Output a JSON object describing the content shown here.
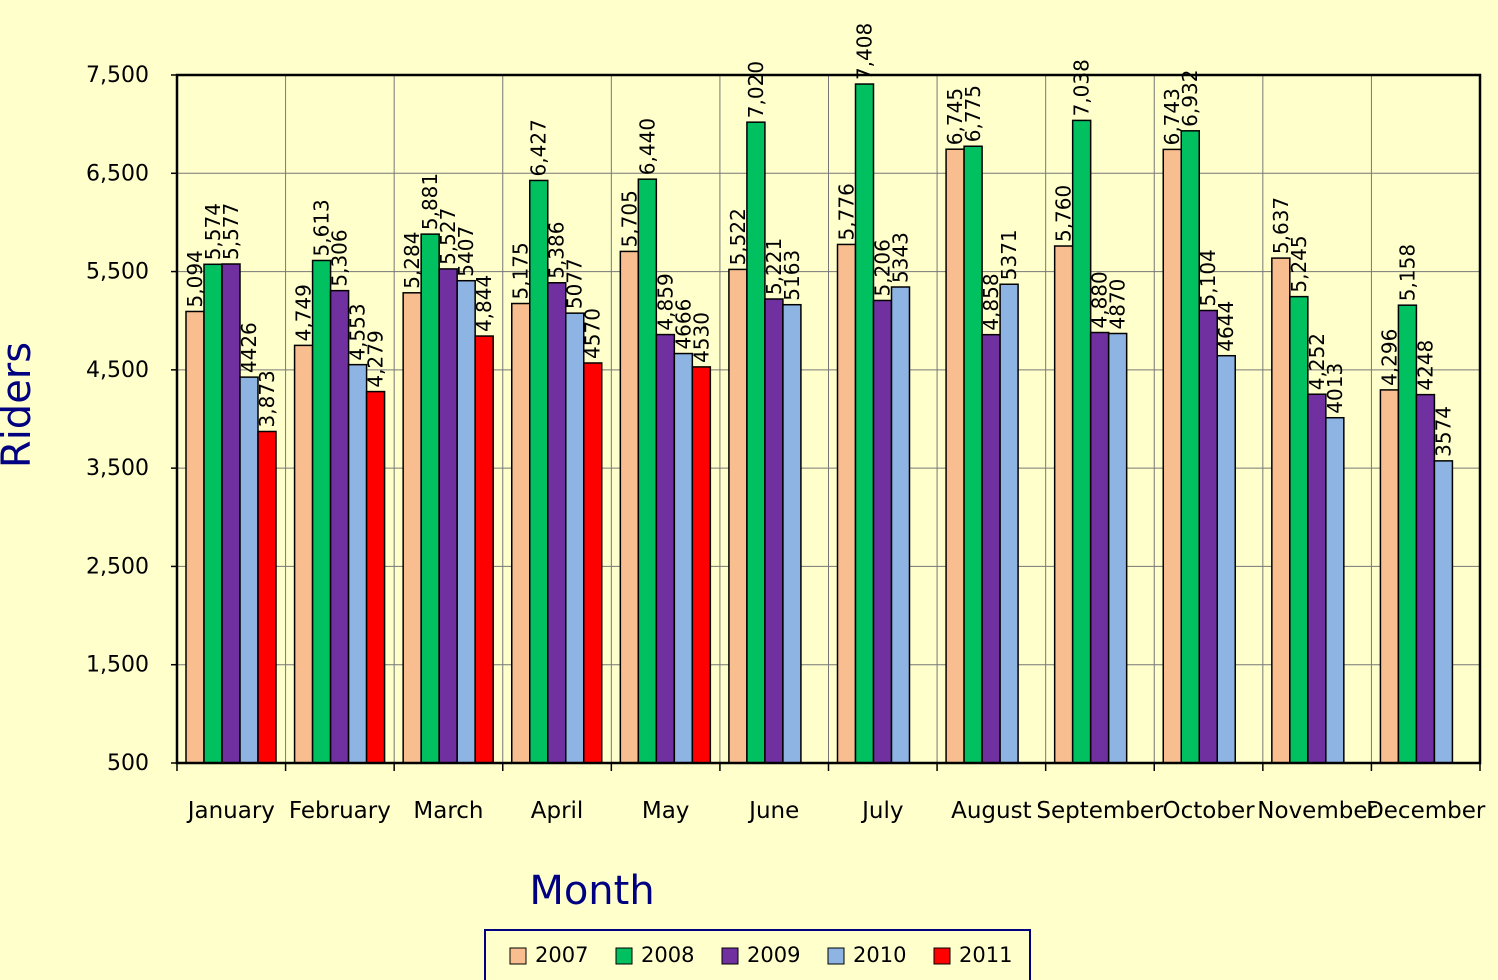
{
  "chart_data": {
    "type": "bar",
    "x_label": "Month",
    "y_label": "Riders",
    "categories": [
      "January",
      "February",
      "March",
      "April",
      "May",
      "June",
      "July",
      "August",
      "September",
      "October",
      "November",
      "December"
    ],
    "series": [
      {
        "name": "2007",
        "color": "#f9be8f",
        "values": [
          5094,
          4749,
          5284,
          5175,
          5705,
          5522,
          5776,
          6745,
          5760,
          6743,
          5637,
          4296
        ],
        "value_labels": [
          "5,094",
          "4,749",
          "5,284",
          "5,175",
          "5,705",
          "5,522",
          "5,776",
          "6,745",
          "5,760",
          "6,743",
          "5,637",
          "4,296"
        ]
      },
      {
        "name": "2008",
        "color": "#00c060",
        "values": [
          5574,
          5613,
          5881,
          6427,
          6440,
          7020,
          7408,
          6775,
          7038,
          6932,
          5245,
          5158
        ],
        "value_labels": [
          "5,574",
          "5,613",
          "5,881",
          "6,427",
          "6,440",
          "7,020",
          "7,408",
          "6,775",
          "7,038",
          "6,932",
          "5,245",
          "5,158"
        ]
      },
      {
        "name": "2009",
        "color": "#7030a0",
        "values": [
          5577,
          5306,
          5527,
          5386,
          4859,
          5221,
          5206,
          4858,
          4880,
          5104,
          4252,
          4248
        ],
        "value_labels": [
          "5,577",
          "5,306",
          "5,527",
          "5,386",
          "4,859",
          "5,221",
          "5,206",
          "4,858",
          "4,880",
          "5,104",
          "4,252",
          "4248"
        ]
      },
      {
        "name": "2010",
        "color": "#8db4e2",
        "values": [
          4426,
          4553,
          5407,
          5077,
          4666,
          5163,
          5343,
          5371,
          4870,
          4644,
          4013,
          3574
        ],
        "value_labels": [
          "4426",
          "4,553",
          "5407",
          "5077",
          "4666",
          "5163",
          "5343",
          "5371",
          "4870",
          "4644",
          "4013",
          "3574"
        ]
      },
      {
        "name": "2011",
        "color": "#ff0000",
        "values": [
          3873,
          4279,
          4844,
          4570,
          4530,
          null,
          null,
          null,
          null,
          null,
          null,
          null
        ],
        "value_labels": [
          "3,873",
          "4,279",
          "4,844",
          "4570",
          "4530",
          null,
          null,
          null,
          null,
          null,
          null,
          null
        ]
      }
    ],
    "ylim": [
      500,
      7500
    ],
    "yticks": [
      {
        "value": 500,
        "label": "500"
      },
      {
        "value": 1500,
        "label": "1,500"
      },
      {
        "value": 2500,
        "label": "2,500"
      },
      {
        "value": 3500,
        "label": "3,500"
      },
      {
        "value": 4500,
        "label": "4,500"
      },
      {
        "value": 5500,
        "label": "5,500"
      },
      {
        "value": 6500,
        "label": "6,500"
      },
      {
        "value": 7500,
        "label": "7,500"
      }
    ],
    "grid": true,
    "legend": "bottom"
  }
}
